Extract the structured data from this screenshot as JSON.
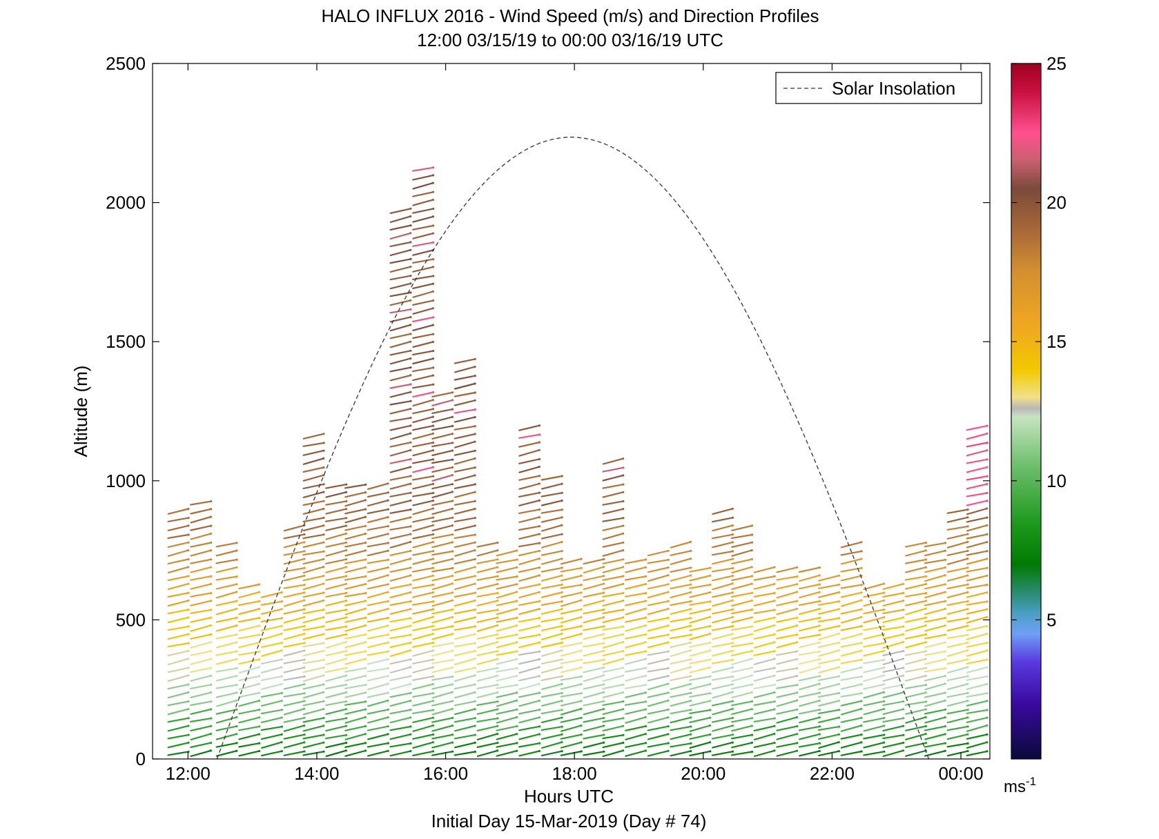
{
  "chart_data": {
    "type": "vector-profile",
    "title_line1": "HALO INFLUX 2016 - Wind Speed (m/s) and Direction Profiles",
    "title_line2": "12:00 03/15/19 to 00:00 03/16/19  UTC",
    "xlabel": "Hours UTC",
    "footer": "Initial Day 15-Mar-2019 (Day # 74)",
    "ylabel": "Altitude (m)",
    "xlim": [
      11.45,
      24.45
    ],
    "ylim": [
      0,
      2500
    ],
    "x_ticks": [
      {
        "value": 12,
        "label": "12:00"
      },
      {
        "value": 14,
        "label": "14:00"
      },
      {
        "value": 16,
        "label": "16:00"
      },
      {
        "value": 18,
        "label": "18:00"
      },
      {
        "value": 20,
        "label": "20:00"
      },
      {
        "value": 22,
        "label": "22:00"
      },
      {
        "value": 24,
        "label": "00:00"
      }
    ],
    "y_ticks": [
      {
        "value": 0,
        "label": "0"
      },
      {
        "value": 500,
        "label": "500"
      },
      {
        "value": 1000,
        "label": "1000"
      },
      {
        "value": 1500,
        "label": "1500"
      },
      {
        "value": 2000,
        "label": "2000"
      },
      {
        "value": 2500,
        "label": "2500"
      }
    ],
    "legend": {
      "entry": "Solar Insolation",
      "style": "dashed",
      "placement": "top-right"
    },
    "colorbar": {
      "range": [
        0,
        25
      ],
      "unit": "ms",
      "unit_exponent": "-1",
      "ticks": [
        {
          "value": 5,
          "label": "5"
        },
        {
          "value": 10,
          "label": "10"
        },
        {
          "value": 15,
          "label": "15"
        },
        {
          "value": 20,
          "label": "20"
        },
        {
          "value": 25,
          "label": "25"
        }
      ],
      "stops": [
        {
          "v": 0,
          "color": "#0a0a3c"
        },
        {
          "v": 2,
          "color": "#3a0aa0"
        },
        {
          "v": 3.5,
          "color": "#5a3ae0"
        },
        {
          "v": 4.5,
          "color": "#6f9ff5"
        },
        {
          "v": 5.2,
          "color": "#4aa0c8"
        },
        {
          "v": 6,
          "color": "#2a8a70"
        },
        {
          "v": 7,
          "color": "#007a00"
        },
        {
          "v": 8.5,
          "color": "#1f9a1f"
        },
        {
          "v": 10.5,
          "color": "#6cbe6c"
        },
        {
          "v": 12.3,
          "color": "#c6e4c0"
        },
        {
          "v": 12.6,
          "color": "#b8b8b8"
        },
        {
          "v": 13,
          "color": "#f2e08a"
        },
        {
          "v": 14,
          "color": "#f2c800"
        },
        {
          "v": 15.5,
          "color": "#f0a820"
        },
        {
          "v": 17.5,
          "color": "#d49030"
        },
        {
          "v": 19,
          "color": "#a86838"
        },
        {
          "v": 20.5,
          "color": "#7a4a3a"
        },
        {
          "v": 21.5,
          "color": "#c86070"
        },
        {
          "v": 22.5,
          "color": "#ff5090"
        },
        {
          "v": 24,
          "color": "#c81040"
        },
        {
          "v": 25,
          "color": "#a00020"
        }
      ]
    },
    "profiles": [
      {
        "t": 11.85,
        "top": 900
      },
      {
        "t": 12.2,
        "top": 940
      },
      {
        "t": 12.6,
        "top": 790
      },
      {
        "t": 12.95,
        "top": 630
      },
      {
        "t": 13.3,
        "top": 590
      },
      {
        "t": 13.65,
        "top": 830
      },
      {
        "t": 13.95,
        "top": 1160
      },
      {
        "t": 14.3,
        "top": 1000
      },
      {
        "t": 14.6,
        "top": 1000
      },
      {
        "t": 14.95,
        "top": 990
      },
      {
        "t": 15.3,
        "top": 1990
      },
      {
        "t": 15.65,
        "top": 2120
      },
      {
        "t": 15.95,
        "top": 1310
      },
      {
        "t": 16.3,
        "top": 1450
      },
      {
        "t": 16.65,
        "top": 790
      },
      {
        "t": 16.95,
        "top": 760
      },
      {
        "t": 17.3,
        "top": 1210
      },
      {
        "t": 17.65,
        "top": 1010
      },
      {
        "t": 17.95,
        "top": 720
      },
      {
        "t": 18.3,
        "top": 710
      },
      {
        "t": 18.6,
        "top": 1090
      },
      {
        "t": 18.95,
        "top": 720
      },
      {
        "t": 19.3,
        "top": 740
      },
      {
        "t": 19.65,
        "top": 780
      },
      {
        "t": 19.95,
        "top": 700
      },
      {
        "t": 20.3,
        "top": 910
      },
      {
        "t": 20.6,
        "top": 830
      },
      {
        "t": 20.95,
        "top": 690
      },
      {
        "t": 21.3,
        "top": 680
      },
      {
        "t": 21.65,
        "top": 680
      },
      {
        "t": 21.95,
        "top": 660
      },
      {
        "t": 22.3,
        "top": 790
      },
      {
        "t": 22.65,
        "top": 620
      },
      {
        "t": 22.95,
        "top": 620
      },
      {
        "t": 23.3,
        "top": 790
      },
      {
        "t": 23.6,
        "top": 790
      },
      {
        "t": 23.95,
        "top": 900
      },
      {
        "t": 24.25,
        "top": 1210
      }
    ],
    "insolation_curve": {
      "start_hour": 12.45,
      "peak_hour": 17.95,
      "end_hour": 23.5,
      "peak_altitude": 2235
    }
  }
}
